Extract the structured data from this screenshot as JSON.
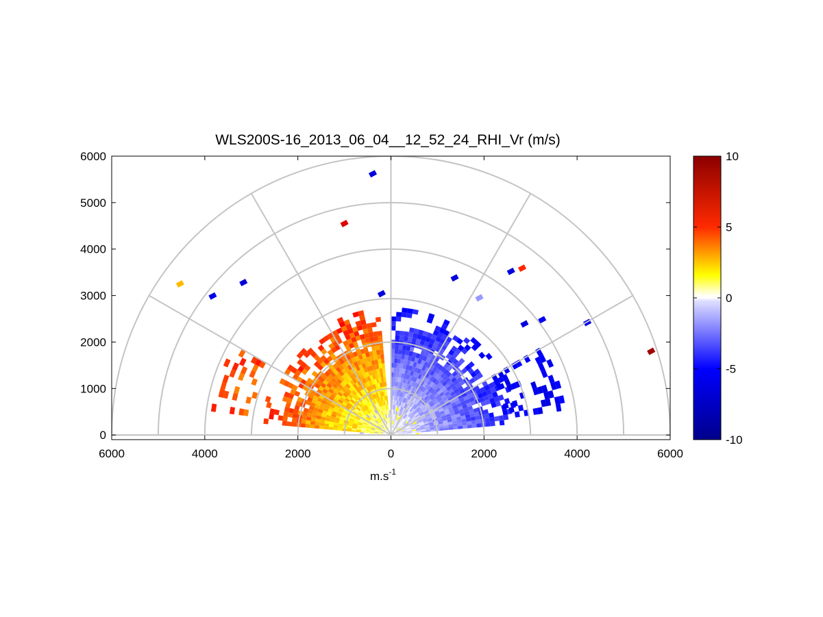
{
  "chart_data": {
    "type": "heatmap",
    "subtype": "polar-rhi-scan",
    "title": "WLS200S-16_2013_06_04__12_52_24_RHI_Vr (m/s)",
    "xlabel": "m.s",
    "xlabel_superscript": "-1",
    "ylabel": "",
    "xlim": [
      -6000,
      6000
    ],
    "ylim": [
      -100,
      6000
    ],
    "x_ticks": [
      -6000,
      -4000,
      -2000,
      0,
      2000,
      4000,
      6000
    ],
    "x_tick_labels": [
      "6000",
      "4000",
      "2000",
      "0",
      "2000",
      "4000",
      "6000"
    ],
    "y_ticks": [
      0,
      1000,
      2000,
      3000,
      4000,
      5000,
      6000
    ],
    "y_tick_labels": [
      "0",
      "1000",
      "2000",
      "3000",
      "4000",
      "5000",
      "6000"
    ],
    "polar_grid": {
      "range_rings": [
        1000,
        2000,
        3000,
        4000,
        5000,
        6000
      ],
      "spokes_deg": [
        0,
        30,
        60,
        90,
        120,
        150,
        180
      ]
    },
    "colorbar": {
      "min": -10,
      "max": 10,
      "ticks": [
        10,
        5,
        0,
        -5,
        -10
      ],
      "tick_labels": [
        "10",
        "5",
        "0",
        "-5",
        "-10"
      ],
      "colormap": [
        "#00008b",
        "#0000ff",
        "#ffffff",
        "#ffff00",
        "#ff0000",
        "#8b0000"
      ]
    },
    "field": {
      "description": "radial velocity regions",
      "left_sector": {
        "angle_deg": [
          95,
          175
        ],
        "range_m": [
          150,
          2700
        ],
        "vr_near": 0.8,
        "vr_far": 4.5
      },
      "right_sector": {
        "angle_deg": [
          5,
          88
        ],
        "range_m": [
          150,
          2700
        ],
        "vr_near": -0.5,
        "vr_far": -5.0
      },
      "right_low_extension": {
        "angle_deg": [
          8,
          30
        ],
        "range_m": [
          2500,
          3800
        ],
        "vr": -5.5
      }
    },
    "isolated_points": [
      {
        "x": -4530,
        "y": 3250,
        "vr": 2.5
      },
      {
        "x": -3830,
        "y": 2990,
        "vr": -6.0
      },
      {
        "x": -3170,
        "y": 3280,
        "vr": -6.5
      },
      {
        "x": -1000,
        "y": 4550,
        "vr": 6.5
      },
      {
        "x": -390,
        "y": 5620,
        "vr": -6.5
      },
      {
        "x": -200,
        "y": 3040,
        "vr": -6.5
      },
      {
        "x": 1370,
        "y": 3380,
        "vr": -6.5
      },
      {
        "x": 2580,
        "y": 3520,
        "vr": -6.5
      },
      {
        "x": 2820,
        "y": 3590,
        "vr": 4.5
      },
      {
        "x": 1900,
        "y": 2950,
        "vr": -2.0
      },
      {
        "x": 4220,
        "y": 2420,
        "vr": -5.5
      },
      {
        "x": 5590,
        "y": 1800,
        "vr": 9.0
      },
      {
        "x": 2870,
        "y": 2390,
        "vr": -6.5
      },
      {
        "x": 3250,
        "y": 2480,
        "vr": -5.5
      }
    ]
  }
}
